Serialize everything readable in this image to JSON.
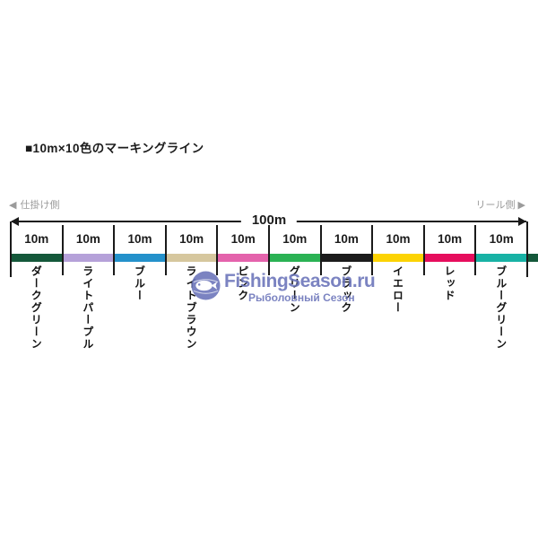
{
  "title": "■10m×10色のマーキングライン",
  "direction_labels": {
    "left": {
      "icon_glyph": "◀",
      "label": "仕掛け側"
    },
    "right": {
      "label": "リール側",
      "icon_glyph": "▶"
    }
  },
  "scale": {
    "total_label": "100m",
    "segment_label": "10m",
    "segment_count": 10
  },
  "segments": [
    {
      "length": "10m",
      "color_name": "ダークグリーン",
      "color_id": "dark-green",
      "color": "#14583A"
    },
    {
      "length": "10m",
      "color_name": "ライトパープル",
      "color_id": "light-purple",
      "color": "#B5A1D9"
    },
    {
      "length": "10m",
      "color_name": "ブルー",
      "color_id": "blue",
      "color": "#2491CB"
    },
    {
      "length": "10m",
      "color_name": "ライトブラウン",
      "color_id": "light-brown",
      "color": "#D6C79E"
    },
    {
      "length": "10m",
      "color_name": "ピンク",
      "color_id": "pink",
      "color": "#E463AC"
    },
    {
      "length": "10m",
      "color_name": "グリーン",
      "color_id": "green",
      "color": "#2BB254"
    },
    {
      "length": "10m",
      "color_name": "ブラック",
      "color_id": "black",
      "color": "#1C1C1C"
    },
    {
      "length": "10m",
      "color_name": "イエロー",
      "color_id": "yellow",
      "color": "#FCD303"
    },
    {
      "length": "10m",
      "color_name": "レッド",
      "color_id": "red",
      "color": "#E60D5D"
    },
    {
      "length": "10m",
      "color_name": "ブルーグリーン",
      "color_id": "blue-green",
      "color": "#18B2A5"
    }
  ],
  "overflow_sliver_color": "#14583A",
  "watermark": {
    "logo_icon": "fish-globe-icon",
    "name": "FishingSeason.ru",
    "subtitle": "Рыболовный Сезон",
    "color": "#6973B9"
  },
  "colors": {
    "line": "#1A1A1A",
    "direction_label_gray": "#9B9B9B",
    "background": "#FFFFFF"
  }
}
